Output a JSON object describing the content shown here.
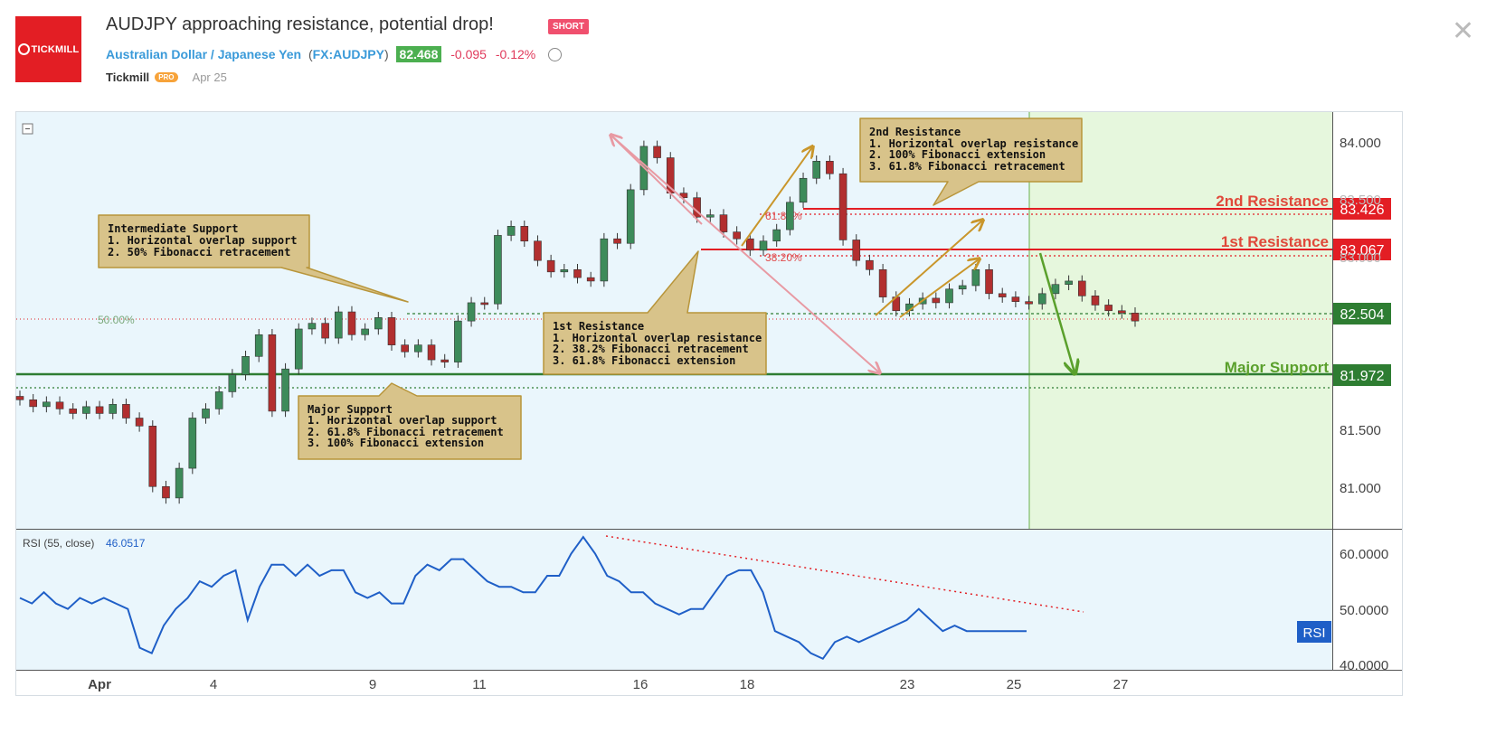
{
  "header": {
    "logo_text": "TICKMILL",
    "title": "AUDJPY approaching resistance, potential drop!",
    "badge": "SHORT",
    "instrument": "Australian Dollar / Japanese Yen",
    "symbol_open": "(",
    "symbol": "FX:AUDJPY",
    "symbol_close": ")",
    "price": "82.468",
    "change": "-0.095",
    "change_pct": "-0.12%",
    "author": "Tickmill",
    "author_badge": "PRO",
    "date": "Apr 25"
  },
  "colors": {
    "up": "#26a69a",
    "down": "#ef5350",
    "resistance": "#e31e24",
    "support": "#2e7d32",
    "rsi": "#1f5fc7",
    "forecast_zone": "#e6f7dd",
    "chart_bg": "#eaf6fc",
    "annotation_bg": "#d8c38a",
    "annotation_border": "#b8953a"
  },
  "chart_data": [
    {
      "type": "line",
      "title": "AUDJPY price",
      "ylim": [
        80.65,
        84.3
      ],
      "y_ticks": [
        "84.000",
        "83.500",
        "83.000",
        "81.500",
        "81.000"
      ],
      "x_ticks": [
        "Apr",
        "4",
        "9",
        "11",
        "16",
        "18",
        "23",
        "25",
        "27"
      ],
      "x": [
        0,
        1,
        2,
        3,
        4,
        5,
        6,
        7,
        8,
        9,
        10,
        11,
        12,
        13,
        14,
        15,
        16,
        17,
        18,
        19,
        20,
        21,
        22,
        23,
        24,
        25,
        26,
        27,
        28,
        29,
        30,
        31,
        32,
        33,
        34,
        35,
        36,
        37,
        38,
        39,
        40,
        41,
        42,
        43,
        44,
        45,
        46,
        47,
        48,
        49,
        50,
        51,
        52,
        53,
        54,
        55,
        56,
        57,
        58,
        59,
        60,
        61,
        62,
        63,
        64,
        65,
        66,
        67,
        68,
        69,
        70,
        71,
        72,
        73,
        74,
        75,
        76,
        77,
        78,
        79,
        80,
        81,
        82,
        83,
        84
      ],
      "close": [
        81.78,
        81.72,
        81.76,
        81.7,
        81.66,
        81.72,
        81.66,
        81.74,
        81.62,
        81.55,
        81.02,
        80.92,
        81.18,
        81.62,
        81.7,
        81.85,
        82.0,
        82.16,
        82.35,
        81.68,
        82.05,
        82.4,
        82.45,
        82.32,
        82.55,
        82.35,
        82.4,
        82.5,
        82.26,
        82.2,
        82.26,
        82.13,
        82.11,
        82.47,
        82.63,
        82.62,
        83.22,
        83.3,
        83.17,
        83.0,
        82.9,
        82.92,
        82.85,
        82.82,
        83.19,
        83.15,
        83.62,
        84.0,
        83.9,
        83.59,
        83.55,
        83.38,
        83.4,
        83.25,
        83.19,
        83.09,
        83.17,
        83.27,
        83.51,
        83.72,
        83.87,
        83.76,
        83.18,
        83.0,
        82.92,
        82.68,
        82.56,
        82.62,
        82.67,
        82.63,
        82.75,
        82.78,
        82.92,
        82.71,
        82.68,
        82.64,
        82.62,
        82.71,
        82.79,
        82.82,
        82.69,
        82.61,
        82.56,
        82.54,
        82.47
      ],
      "levels": [
        {
          "label": "2nd Resistance",
          "value": "83.426"
        },
        {
          "label": "1st Resistance",
          "value": "83.067"
        },
        {
          "label": "",
          "value": "82.504"
        },
        {
          "label": "Major Support",
          "value": "81.972"
        }
      ],
      "fib_labels": [
        "61.80%",
        "38.20%",
        "50.00%"
      ]
    },
    {
      "type": "line",
      "title": "RSI (55, close)",
      "current": "46.0517",
      "tag": "RSI",
      "ylim": [
        39.5,
        64
      ],
      "y_ticks": [
        "60.0000",
        "50.0000",
        "40.0000"
      ],
      "x": [
        0,
        1,
        2,
        3,
        4,
        5,
        6,
        7,
        8,
        9,
        10,
        11,
        12,
        13,
        14,
        15,
        16,
        17,
        18,
        19,
        20,
        21,
        22,
        23,
        24,
        25,
        26,
        27,
        28,
        29,
        30,
        31,
        32,
        33,
        34,
        35,
        36,
        37,
        38,
        39,
        40,
        41,
        42,
        43,
        44,
        45,
        46,
        47,
        48,
        49,
        50,
        51,
        52,
        53,
        54,
        55,
        56,
        57,
        58,
        59,
        60,
        61,
        62,
        63,
        64,
        65,
        66,
        67,
        68,
        69,
        70,
        71,
        72,
        73,
        74,
        75,
        76,
        77,
        78,
        79,
        80,
        81,
        82,
        83,
        84
      ],
      "values": [
        52,
        51,
        53,
        51,
        50,
        52,
        51,
        52,
        51,
        50,
        43,
        42,
        47,
        50,
        52,
        55,
        54,
        56,
        57,
        48,
        54,
        58,
        58,
        56,
        58,
        56,
        57,
        57,
        53,
        52,
        53,
        51,
        51,
        56,
        58,
        57,
        59,
        59,
        57,
        55,
        54,
        54,
        53,
        53,
        56,
        56,
        60,
        63,
        60,
        56,
        55,
        53,
        53,
        51,
        50,
        49,
        50,
        50,
        53,
        56,
        57,
        57,
        53,
        46,
        45,
        44,
        42,
        41,
        44,
        45,
        44,
        45,
        46,
        47,
        48,
        50,
        48,
        46,
        47,
        46,
        46,
        46,
        46,
        46,
        46
      ]
    }
  ],
  "annotations": {
    "intermediate_support": [
      "Intermediate Support",
      "1. Horizontal overlap support",
      "2. 50% Fibonacci retracement"
    ],
    "first_resistance": [
      "1st Resistance",
      "1. Horizontal overlap resistance",
      "2. 38.2% Fibonacci retracement",
      "3. 61.8% Fibonacci extension"
    ],
    "second_resistance": [
      "2nd Resistance",
      "1. Horizontal overlap resistance",
      "2. 100% Fibonacci extension",
      "3. 61.8% Fibonacci retracement"
    ],
    "major_support": [
      "Major Support",
      "1. Horizontal overlap support",
      "2. 61.8% Fibonacci retracement",
      "3. 100% Fibonacci extension"
    ]
  }
}
